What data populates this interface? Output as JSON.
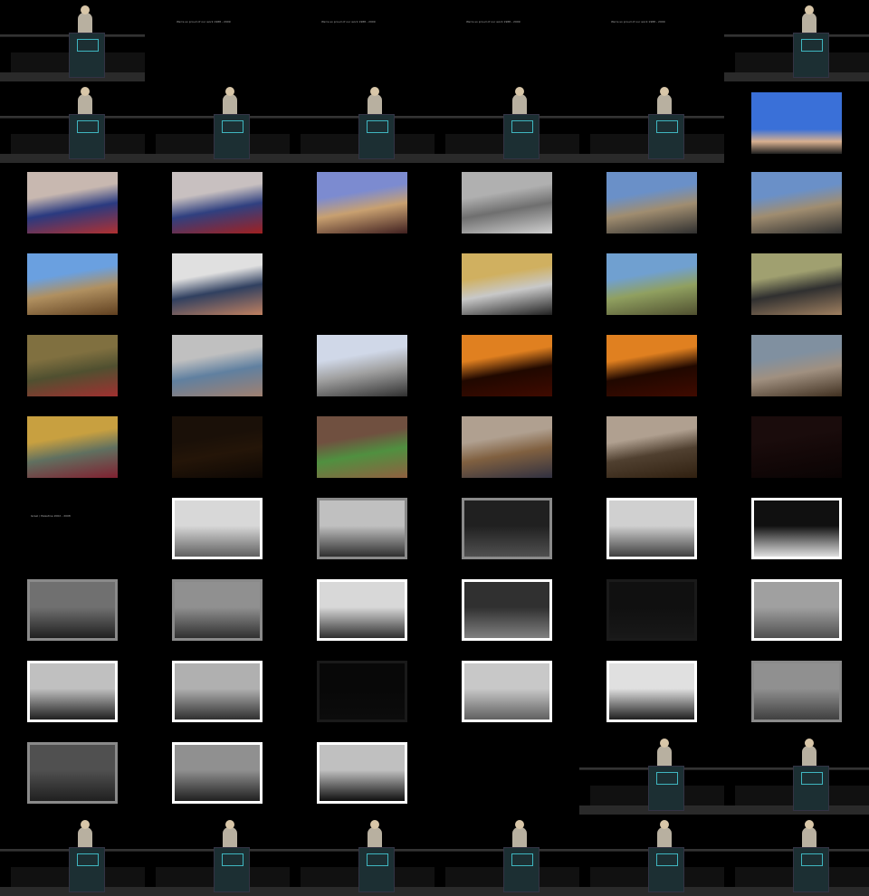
{
  "captions": {
    "c1": "We're so proud of our work 1988 - 2009",
    "c2": "We're so proud of our work 1988 - 2009",
    "c3": "We're so proud of our work 1988 - 2009",
    "c4": "We're so proud of our work 1988 - 2009",
    "section_bw": "Israel / Palestine 2002 - 2008"
  },
  "colors": {
    "background": "#000000",
    "podium_logo": "#3fb6c0"
  },
  "photos": [
    {
      "row": 2,
      "col": 0,
      "colors": [
        "#c8b8b0",
        "#2a3a80",
        "#b03030"
      ]
    },
    {
      "row": 2,
      "col": 1,
      "colors": [
        "#c8c0c0",
        "#304080",
        "#a02020"
      ]
    },
    {
      "row": 2,
      "col": 2,
      "colors": [
        "#7c8bd0",
        "#c8a070",
        "#402020"
      ]
    },
    {
      "row": 2,
      "col": 3,
      "colors": [
        "#b0b0b0",
        "#6f6f6f",
        "#d0d0d0"
      ]
    },
    {
      "row": 2,
      "col": 4,
      "colors": [
        "#6a90c8",
        "#a08d70",
        "#303030"
      ]
    },
    {
      "row": 2,
      "col": 5,
      "colors": [
        "#6a90c8",
        "#a08d70",
        "#303030"
      ]
    },
    {
      "row": 3,
      "col": 0,
      "colors": [
        "#6aa0e0",
        "#b09060",
        "#604020"
      ]
    },
    {
      "row": 3,
      "col": 1,
      "colors": [
        "#e0e0e0",
        "#304060",
        "#c08060"
      ]
    },
    {
      "row": 3,
      "col": 3,
      "colors": [
        "#d0b060",
        "#c8c8c8",
        "#202020"
      ]
    },
    {
      "row": 3,
      "col": 4,
      "colors": [
        "#70a0d0",
        "#90a060",
        "#505030"
      ]
    },
    {
      "row": 3,
      "col": 5,
      "colors": [
        "#a0a070",
        "#303030",
        "#a08060"
      ]
    },
    {
      "row": 4,
      "col": 0,
      "colors": [
        "#807040",
        "#505030",
        "#a03030"
      ]
    },
    {
      "row": 4,
      "col": 1,
      "colors": [
        "#c0c0c0",
        "#6080a0",
        "#a08070"
      ]
    },
    {
      "row": 4,
      "col": 2,
      "colors": [
        "#d0d8e8",
        "#a0a0a0",
        "#303030"
      ]
    },
    {
      "row": 4,
      "col": 3,
      "colors": [
        "#e08020",
        "#200800",
        "#400a00"
      ]
    },
    {
      "row": 4,
      "col": 4,
      "colors": [
        "#e08020",
        "#200800",
        "#400a00"
      ]
    },
    {
      "row": 4,
      "col": 5,
      "colors": [
        "#8090a0",
        "#a09080",
        "#403020"
      ]
    },
    {
      "row": 5,
      "col": 0,
      "colors": [
        "#c8a040",
        "#607060",
        "#802030"
      ]
    },
    {
      "row": 5,
      "col": 1,
      "colors": [
        "#1a1008",
        "#241508",
        "#0e0804"
      ]
    },
    {
      "row": 5,
      "col": 2,
      "colors": [
        "#705040",
        "#509040",
        "#906040"
      ]
    },
    {
      "row": 5,
      "col": 3,
      "colors": [
        "#b0a090",
        "#806040",
        "#303040"
      ]
    },
    {
      "row": 5,
      "col": 4,
      "colors": [
        "#b0a090",
        "#504030",
        "#302010"
      ]
    },
    {
      "row": 5,
      "col": 5,
      "colors": [
        "#1a0c0c",
        "#140808",
        "#0a0404"
      ]
    }
  ],
  "bw_photos": [
    {
      "row": 6,
      "col": 1,
      "frame": "white",
      "tone": [
        "#d8d8d8",
        "#606060"
      ]
    },
    {
      "row": 6,
      "col": 2,
      "frame": "gray",
      "tone": [
        "#c0c0c0",
        "#303030"
      ]
    },
    {
      "row": 6,
      "col": 3,
      "frame": "gray",
      "tone": [
        "#202020",
        "#505050"
      ]
    },
    {
      "row": 6,
      "col": 4,
      "frame": "white",
      "tone": [
        "#d0d0d0",
        "#404040"
      ]
    },
    {
      "row": 6,
      "col": 5,
      "frame": "white",
      "tone": [
        "#101010",
        "#e0e0e0"
      ]
    },
    {
      "row": 7,
      "col": 0,
      "frame": "gray",
      "tone": [
        "#707070",
        "#202020"
      ]
    },
    {
      "row": 7,
      "col": 1,
      "frame": "gray",
      "tone": [
        "#909090",
        "#303030"
      ]
    },
    {
      "row": 7,
      "col": 2,
      "frame": "white",
      "tone": [
        "#d8d8d8",
        "#303030"
      ]
    },
    {
      "row": 7,
      "col": 3,
      "frame": "white",
      "tone": [
        "#303030",
        "#808080"
      ]
    },
    {
      "row": 7,
      "col": 4,
      "frame": "dark",
      "tone": [
        "#101010",
        "#181818"
      ]
    },
    {
      "row": 7,
      "col": 5,
      "frame": "white",
      "tone": [
        "#a0a0a0",
        "#505050"
      ]
    },
    {
      "row": 8,
      "col": 0,
      "frame": "white",
      "tone": [
        "#c0c0c0",
        "#202020"
      ]
    },
    {
      "row": 8,
      "col": 1,
      "frame": "white",
      "tone": [
        "#b0b0b0",
        "#303030"
      ]
    },
    {
      "row": 8,
      "col": 2,
      "frame": "dark",
      "tone": [
        "#080808",
        "#0c0c0c"
      ]
    },
    {
      "row": 8,
      "col": 3,
      "frame": "white",
      "tone": [
        "#c8c8c8",
        "#606060"
      ]
    },
    {
      "row": 8,
      "col": 4,
      "frame": "white",
      "tone": [
        "#e0e0e0",
        "#202020"
      ]
    },
    {
      "row": 8,
      "col": 5,
      "frame": "gray",
      "tone": [
        "#909090",
        "#404040"
      ]
    },
    {
      "row": 9,
      "col": 0,
      "frame": "gray",
      "tone": [
        "#505050",
        "#202020"
      ]
    },
    {
      "row": 9,
      "col": 1,
      "frame": "white",
      "tone": [
        "#909090",
        "#202020"
      ]
    },
    {
      "row": 9,
      "col": 2,
      "frame": "white",
      "tone": [
        "#c0c0c0",
        "#101010"
      ]
    }
  ],
  "stages": [
    {
      "row": 0,
      "col": 0,
      "full": false
    },
    {
      "row": 0,
      "col": 5,
      "full": false
    },
    {
      "row": 1,
      "col": 0,
      "full": false
    },
    {
      "row": 1,
      "col": 1,
      "full": false
    },
    {
      "row": 1,
      "col": 2,
      "full": false
    },
    {
      "row": 1,
      "col": 3,
      "full": false
    },
    {
      "row": 1,
      "col": 4,
      "full": false
    },
    {
      "row": 9,
      "col": 4,
      "full": false
    },
    {
      "row": 9,
      "col": 5,
      "full": false
    },
    {
      "row": 10,
      "col": 0,
      "full": false
    },
    {
      "row": 10,
      "col": 1,
      "full": false
    },
    {
      "row": 10,
      "col": 2,
      "full": false
    },
    {
      "row": 10,
      "col": 3,
      "full": true
    },
    {
      "row": 10,
      "col": 4,
      "full": true
    },
    {
      "row": 10,
      "col": 5,
      "full": true
    }
  ],
  "hand_photo": {
    "row": 1,
    "col": 5,
    "colors": [
      "#3a70d8",
      "#d8b090",
      "#202020"
    ]
  }
}
